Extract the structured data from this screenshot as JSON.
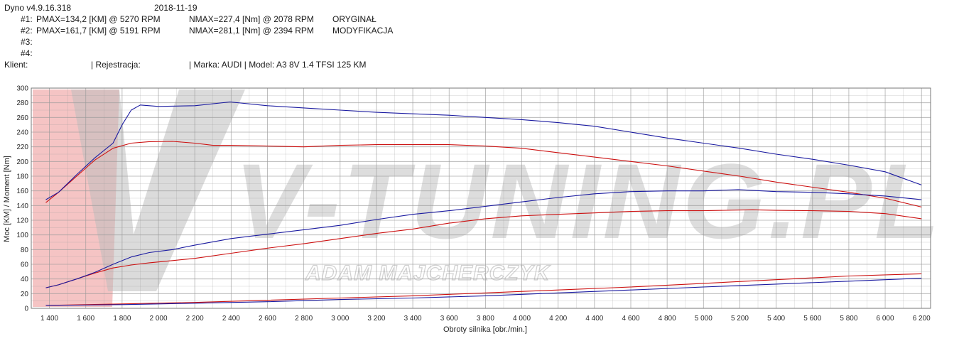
{
  "header": {
    "app": "Dyno v4.9.16.318",
    "date": "2018-11-19",
    "runs": [
      {
        "id": "#1:",
        "pmax": "PMAX=134,2 [KM] @ 5270 RPM",
        "nmax": "NMAX=227,4 [Nm] @ 2078 RPM",
        "name": "ORYGINAŁ"
      },
      {
        "id": "#2:",
        "pmax": "PMAX=161,7 [KM] @ 5191 RPM",
        "nmax": "NMAX=281,1 [Nm] @ 2394 RPM",
        "name": "MODYFIKACJA"
      },
      {
        "id": "#3:",
        "pmax": "",
        "nmax": "",
        "name": ""
      },
      {
        "id": "#4:",
        "pmax": "",
        "nmax": "",
        "name": ""
      }
    ],
    "klient_label": "Klient:",
    "rejestracja_label": "| Rejestracja:",
    "marka": "| Marka: AUDI | Model: A3 8V 1.4 TFSI 125 KM"
  },
  "watermark": {
    "main": "V-TUNING.PL",
    "sub": "ADAM MAJCHERCZYK"
  },
  "colors": {
    "original": "#cc1111",
    "modified": "#1a1aa0",
    "grid": "#9a9a9a",
    "tick_text": "#2a2a2a",
    "watermark_gray": "#bdbdbd",
    "watermark_red": "#f2b5b5"
  },
  "chart_data": {
    "type": "line",
    "xlabel": "Obroty silnika [obr./min.]",
    "ylabel": "Moc [KM] / Moment [Nm]",
    "xlim": [
      1300,
      6250
    ],
    "ylim": [
      0,
      300
    ],
    "xticks": [
      "1 400",
      "1 600",
      "1 800",
      "2 000",
      "2 200",
      "2 400",
      "2 600",
      "2 800",
      "3 000",
      "3 200",
      "3 400",
      "3 600",
      "3 800",
      "4 000",
      "4 200",
      "4 400",
      "4 600",
      "4 800",
      "5 000",
      "5 200",
      "5 400",
      "5 600",
      "5 800",
      "6 000",
      "6 200"
    ],
    "xtick_values": [
      1400,
      1600,
      1800,
      2000,
      2200,
      2400,
      2600,
      2800,
      3000,
      3200,
      3400,
      3600,
      3800,
      4000,
      4200,
      4400,
      4600,
      4800,
      5000,
      5200,
      5400,
      5600,
      5800,
      6000,
      6200
    ],
    "yticks": [
      0,
      20,
      40,
      60,
      80,
      100,
      120,
      140,
      160,
      180,
      200,
      220,
      240,
      260,
      280,
      300
    ],
    "grid": true,
    "series": [
      {
        "name": "ORYGINAŁ",
        "role": "torque",
        "color": "#cc1111",
        "x": [
          1380,
          1450,
          1550,
          1650,
          1750,
          1850,
          1950,
          2078,
          2200,
          2300,
          2400,
          2600,
          2800,
          3000,
          3200,
          3400,
          3600,
          3800,
          4000,
          4200,
          4400,
          4600,
          4800,
          5000,
          5200,
          5400,
          5600,
          5800,
          6000,
          6200
        ],
        "y": [
          144,
          158,
          180,
          202,
          218,
          225,
          227,
          227.4,
          225,
          222,
          222,
          221,
          220,
          222,
          223,
          223,
          223,
          221,
          218,
          212,
          206,
          200,
          194,
          187,
          180,
          172,
          165,
          158,
          150,
          138
        ]
      },
      {
        "name": "ORYGINAŁ",
        "role": "power",
        "color": "#cc1111",
        "x": [
          1380,
          1450,
          1550,
          1650,
          1750,
          1850,
          1950,
          2078,
          2200,
          2400,
          2600,
          2800,
          3000,
          3200,
          3400,
          3600,
          3800,
          4000,
          4200,
          4400,
          4600,
          4800,
          5000,
          5270,
          5400,
          5600,
          5800,
          6000,
          6200
        ],
        "y": [
          28,
          32,
          40,
          48,
          55,
          59,
          62,
          65,
          68,
          75,
          82,
          88,
          95,
          102,
          108,
          116,
          122,
          126,
          128,
          130,
          132,
          133,
          133,
          134.2,
          133.5,
          133,
          132,
          129,
          122
        ]
      },
      {
        "name": "MODYFIKACJA",
        "role": "torque",
        "color": "#1a1aa0",
        "x": [
          1380,
          1450,
          1550,
          1650,
          1750,
          1800,
          1850,
          1900,
          2000,
          2200,
          2394,
          2600,
          2800,
          3000,
          3200,
          3400,
          3600,
          3800,
          4000,
          4200,
          4400,
          4600,
          4800,
          5000,
          5200,
          5400,
          5600,
          5800,
          6000,
          6200
        ],
        "y": [
          148,
          158,
          182,
          205,
          225,
          250,
          270,
          277,
          275,
          276,
          281.1,
          276,
          273,
          270,
          267,
          265,
          263,
          260,
          257,
          253,
          248,
          240,
          232,
          225,
          218,
          210,
          203,
          195,
          186,
          168
        ]
      },
      {
        "name": "MODYFIKACJA",
        "role": "power",
        "color": "#1a1aa0",
        "x": [
          1380,
          1450,
          1550,
          1650,
          1750,
          1850,
          1950,
          2078,
          2200,
          2400,
          2600,
          2800,
          3000,
          3200,
          3400,
          3600,
          3800,
          4000,
          4200,
          4400,
          4600,
          4800,
          5000,
          5191,
          5400,
          5600,
          5800,
          6000,
          6200
        ],
        "y": [
          28,
          32,
          40,
          49,
          60,
          70,
          76,
          80,
          86,
          95,
          101,
          107,
          113,
          121,
          128,
          133,
          139,
          145,
          151,
          156,
          159,
          160,
          160,
          161.7,
          159,
          158,
          156,
          153,
          148
        ]
      },
      {
        "name": "ORYGINAŁ",
        "role": "losses",
        "color": "#cc1111",
        "x": [
          1380,
          1800,
          2200,
          2600,
          3000,
          3400,
          3800,
          4200,
          4600,
          5000,
          5400,
          5800,
          6200
        ],
        "y": [
          4,
          6,
          8,
          11,
          14,
          17,
          21,
          25,
          29,
          34,
          39,
          44,
          47
        ]
      },
      {
        "name": "MODYFIKACJA",
        "role": "losses",
        "color": "#1a1aa0",
        "x": [
          1380,
          1800,
          2200,
          2600,
          3000,
          3400,
          3800,
          4200,
          4600,
          5000,
          5400,
          5800,
          6200
        ],
        "y": [
          4,
          5,
          7,
          9,
          12,
          14,
          17,
          21,
          25,
          29,
          33,
          37,
          41
        ]
      }
    ]
  }
}
